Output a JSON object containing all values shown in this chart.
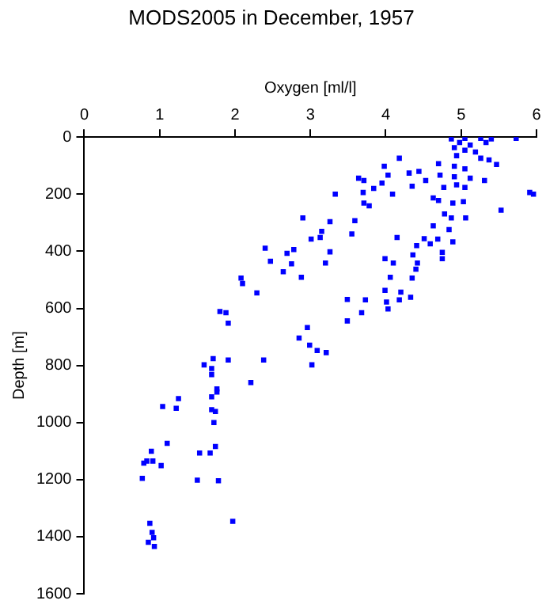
{
  "chart_data": {
    "type": "scatter",
    "title": "MODS2005 in December, 1957",
    "xlabel": "Oxygen [ml/l]",
    "ylabel": "Depth [m]",
    "xlim": [
      0,
      6
    ],
    "xticks": [
      0,
      1,
      2,
      3,
      4,
      5,
      6
    ],
    "ylim": [
      1600,
      0
    ],
    "yticks": [
      0,
      200,
      400,
      600,
      800,
      1000,
      1200,
      1400,
      1600
    ],
    "grid": false,
    "legend": false,
    "marker": "square",
    "series": [
      {
        "color": "#0000ff",
        "x": [
          4.87,
          5.05,
          5.26,
          5.4,
          5.73,
          4.98,
          5.12,
          5.33,
          4.91,
          5.05,
          5.19,
          4.94,
          5.26,
          5.37,
          5.47,
          4.7,
          4.91,
          5.05,
          4.18,
          3.98,
          4.03,
          4.31,
          4.44,
          4.53,
          4.72,
          4.91,
          5.12,
          5.31,
          4.77,
          4.94,
          5.05,
          3.64,
          3.71,
          3.95,
          3.84,
          4.09,
          4.35,
          3.33,
          3.7,
          3.71,
          3.78,
          4.63,
          4.7,
          4.89,
          5.03,
          4.78,
          4.87,
          5.06,
          4.63,
          4.84,
          5.53,
          5.91,
          5.96,
          2.9,
          3.26,
          3.59,
          3.15,
          3.13,
          3.01,
          3.55,
          4.15,
          4.51,
          4.59,
          4.41,
          4.69,
          4.89,
          2.4,
          2.78,
          2.69,
          3.26,
          2.47,
          2.75,
          3.2,
          2.64,
          2.88,
          3.99,
          4.1,
          4.36,
          4.42,
          4.4,
          4.75,
          4.75,
          4.06,
          4.35,
          3.99,
          4.2,
          4.01,
          4.18,
          4.33,
          4.03,
          2.08,
          2.1,
          2.29,
          1.8,
          1.88,
          1.91,
          3.49,
          3.73,
          3.68,
          3.49,
          2.96,
          2.85,
          2.99,
          3.09,
          3.21,
          3.02,
          2.38,
          2.21,
          1.59,
          1.69,
          1.71,
          1.91,
          1.69,
          1.76,
          1.76,
          1.25,
          1.04,
          1.22,
          1.69,
          1.69,
          1.74,
          1.72,
          1.1,
          0.89,
          0.83,
          0.91,
          0.79,
          1.02,
          1.53,
          1.67,
          1.74,
          0.77,
          1.5,
          1.78,
          1.97,
          0.87,
          0.9,
          0.92,
          0.85,
          0.93
        ],
        "values": [
          6,
          4,
          4,
          6,
          4,
          19,
          28,
          19,
          37,
          46,
          52,
          65,
          74,
          80,
          96,
          93,
          102,
          111,
          74,
          102,
          133,
          126,
          120,
          152,
          133,
          139,
          144,
          152,
          176,
          167,
          176,
          144,
          152,
          161,
          180,
          200,
          172,
          200,
          194,
          231,
          241,
          213,
          222,
          231,
          226,
          269,
          283,
          283,
          311,
          324,
          256,
          194,
          200,
          283,
          296,
          293,
          330,
          352,
          357,
          339,
          352,
          356,
          374,
          380,
          357,
          367,
          389,
          394,
          407,
          402,
          435,
          444,
          441,
          472,
          491,
          426,
          441,
          413,
          441,
          463,
          404,
          426,
          491,
          494,
          537,
          543,
          578,
          570,
          561,
          602,
          494,
          513,
          546,
          611,
          615,
          652,
          569,
          570,
          615,
          644,
          667,
          704,
          729,
          748,
          755,
          798,
          781,
          860,
          798,
          811,
          776,
          781,
          832,
          882,
          893,
          916,
          944,
          950,
          910,
          955,
          961,
          1000,
          1073,
          1101,
          1135,
          1135,
          1142,
          1151,
          1107,
          1107,
          1084,
          1196,
          1202,
          1204,
          1346,
          1353,
          1385,
          1404,
          1420,
          1434
        ]
      }
    ]
  }
}
